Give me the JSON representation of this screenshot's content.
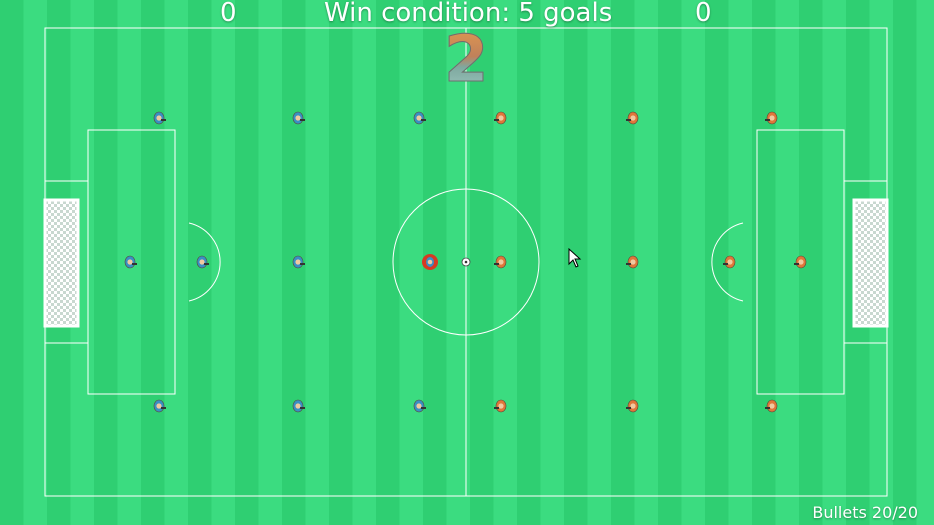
{
  "hud": {
    "score_left": "0",
    "score_right": "0",
    "win_condition": "Win condition: 5 goals",
    "countdown": "2",
    "bullets": "Bullets 20/20"
  },
  "colors": {
    "grass_dark": "#2fcf72",
    "grass_light": "#3bdc80",
    "lines": "#ffffff",
    "blue_team": "#3a8fc4",
    "orange_team": "#e0763a",
    "controlled_player": "#d63a22"
  },
  "teams": {
    "left": {
      "name": "blue",
      "icon": "blue-player-icon"
    },
    "right": {
      "name": "orange",
      "icon": "orange-player-icon"
    }
  }
}
